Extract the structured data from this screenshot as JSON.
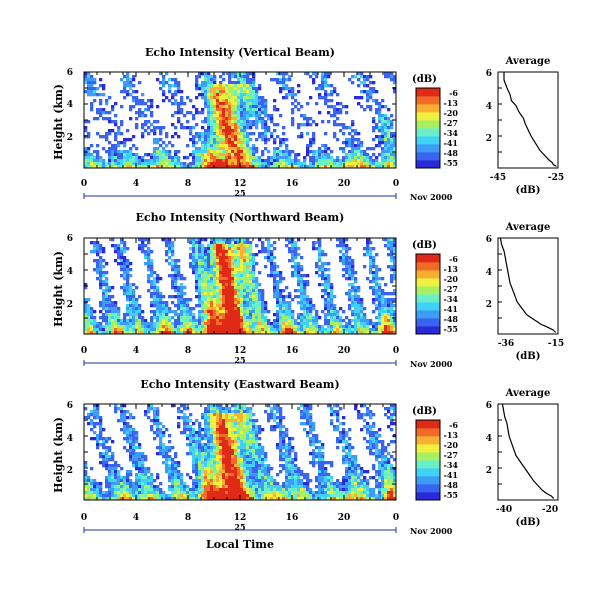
{
  "colors": [
    "#2a2ad8",
    "#3a64f0",
    "#3c9cf6",
    "#40d2f6",
    "#6af0c8",
    "#a8f060",
    "#f0f040",
    "#f8b030",
    "#f06a28",
    "#e02a18"
  ],
  "cbar": {
    "unit": "(dB)",
    "ticks_set1": [
      "-6",
      "-13",
      "-20",
      "-27",
      "-34",
      "-41",
      "-48",
      "-55"
    ],
    "ticks_set2": [
      "-6",
      "-13",
      "-20",
      "-27",
      "-34",
      "-41",
      "-48",
      "-55"
    ]
  },
  "chart_data": [
    {
      "type": "heatmap",
      "title": "Echo Intensity (Vertical Beam)",
      "ylabel": "Height (km)",
      "xlabel": "",
      "x_ticks": [
        "0",
        "4",
        "8",
        "12",
        "16",
        "20",
        "0"
      ],
      "date_day": "25",
      "date_label": "Nov 2000",
      "ylim": [
        0,
        6
      ],
      "y_ticks": [
        "6",
        "4",
        "2"
      ],
      "xlim_hours": [
        0,
        24
      ],
      "colorbar_db": [
        -55,
        -6
      ]
    },
    {
      "type": "line",
      "title": "Average",
      "xlabel": "(dB)",
      "x_ticks": [
        "-45",
        "-25"
      ],
      "xlim": [
        -45,
        -25
      ],
      "y_ticks": [
        "6",
        "4",
        "2"
      ],
      "ylim": [
        0,
        6
      ],
      "series": [
        {
          "x": [
            -43,
            -43,
            -42,
            -41,
            -40.5,
            -39,
            -38,
            -36.5,
            -36,
            -35,
            -34,
            -33,
            -32,
            -31,
            -30,
            -29,
            -28,
            -27,
            -26.5,
            -25.5
          ],
          "y": [
            6.0,
            5.5,
            5.0,
            4.6,
            4.2,
            3.9,
            3.5,
            3.1,
            2.8,
            2.4,
            2.0,
            1.7,
            1.4,
            1.1,
            0.9,
            0.7,
            0.5,
            0.35,
            0.2,
            0.1
          ]
        }
      ]
    },
    {
      "type": "heatmap",
      "title": "Echo Intensity (Northward Beam)",
      "ylabel": "Height (km)",
      "xlabel": "",
      "x_ticks": [
        "0",
        "4",
        "8",
        "12",
        "16",
        "20",
        "0"
      ],
      "date_day": "25",
      "date_label": "Nov 2000",
      "ylim": [
        0,
        6
      ],
      "y_ticks": [
        "6",
        "4",
        "2"
      ],
      "xlim_hours": [
        0,
        24
      ],
      "colorbar_db": [
        -55,
        -6
      ]
    },
    {
      "type": "line",
      "title": "Average",
      "xlabel": "(dB)",
      "x_ticks": [
        "-36",
        "-15"
      ],
      "xlim": [
        -40,
        -15
      ],
      "y_ticks": [
        "6",
        "4",
        "2"
      ],
      "ylim": [
        0,
        6
      ],
      "series": [
        {
          "x": [
            -39,
            -38.5,
            -37.5,
            -37,
            -36.5,
            -36,
            -35.5,
            -35,
            -34,
            -33,
            -32,
            -30,
            -28,
            -25,
            -22,
            -19,
            -17,
            -16
          ],
          "y": [
            6.0,
            5.6,
            5.2,
            4.8,
            4.4,
            4.0,
            3.6,
            3.2,
            2.8,
            2.4,
            2.0,
            1.6,
            1.2,
            0.9,
            0.6,
            0.4,
            0.25,
            0.1
          ]
        }
      ]
    },
    {
      "type": "heatmap",
      "title": "Echo Intensity (Eastward Beam)",
      "ylabel": "Height (km)",
      "xlabel": "Local Time",
      "x_ticks": [
        "0",
        "4",
        "8",
        "12",
        "16",
        "20",
        "0"
      ],
      "date_day": "25",
      "date_label": "Nov 2000",
      "ylim": [
        0,
        6
      ],
      "y_ticks": [
        "6",
        "4",
        "2"
      ],
      "xlim_hours": [
        0,
        24
      ],
      "colorbar_db": [
        -55,
        -6
      ]
    },
    {
      "type": "line",
      "title": "Average",
      "xlabel": "(dB)",
      "x_ticks": [
        "-40",
        "-20"
      ],
      "xlim": [
        -45,
        -18
      ],
      "y_ticks": [
        "6",
        "4",
        "2"
      ],
      "ylim": [
        0,
        6
      ],
      "series": [
        {
          "x": [
            -43,
            -42.5,
            -42,
            -41,
            -40.5,
            -40,
            -39,
            -38,
            -37,
            -35,
            -33,
            -31,
            -29,
            -27,
            -25,
            -23,
            -21,
            -20
          ],
          "y": [
            6.0,
            5.6,
            5.2,
            4.8,
            4.4,
            4.0,
            3.6,
            3.2,
            2.8,
            2.4,
            2.0,
            1.6,
            1.2,
            0.9,
            0.6,
            0.4,
            0.25,
            0.1
          ]
        }
      ]
    }
  ]
}
